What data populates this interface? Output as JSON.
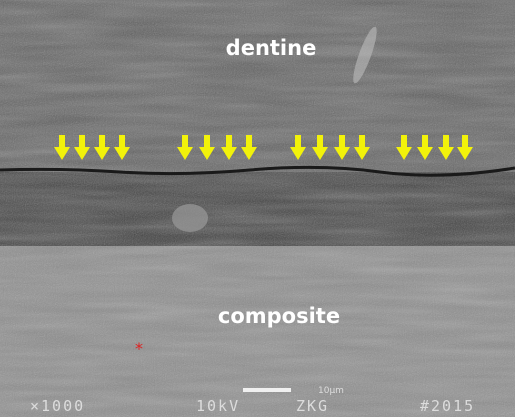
{
  "image": {
    "labels": {
      "top": "dentine",
      "bottom": "composite",
      "marker": "*"
    },
    "footer": {
      "magnification": "×1000",
      "voltage": "10kV",
      "scale": "10μm",
      "operator": "ZKG",
      "number": "#2015"
    }
  }
}
